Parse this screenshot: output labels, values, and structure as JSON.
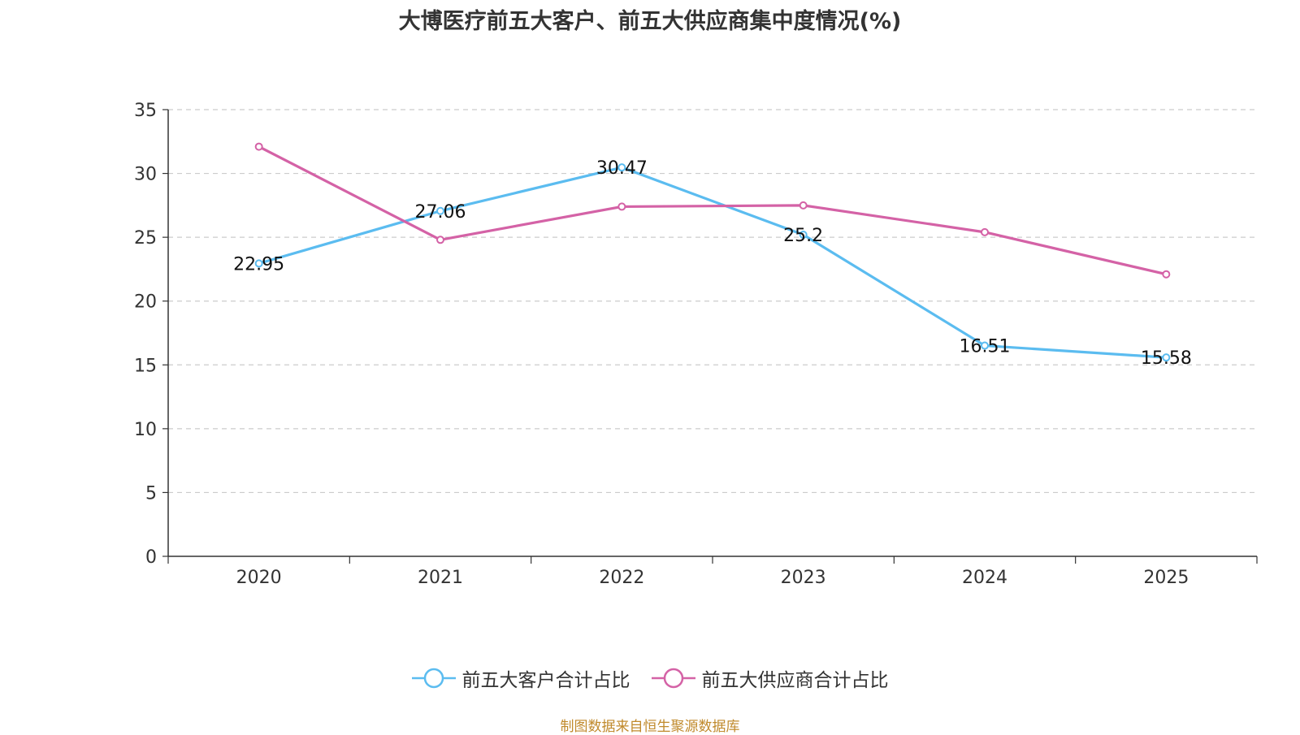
{
  "chart_data": {
    "type": "line",
    "title": "大博医疗前五大客户、前五大供应商集中度情况(%)",
    "xlabel": "",
    "ylabel": "",
    "categories": [
      "2020",
      "2021",
      "2022",
      "2023",
      "2024",
      "2025"
    ],
    "ylim": [
      0,
      35
    ],
    "yticks": [
      0,
      5,
      10,
      15,
      20,
      25,
      30,
      35
    ],
    "grid": true,
    "legend_position": "bottom-center",
    "series": [
      {
        "name": "前五大客户合计占比",
        "color": "#5bbcf0",
        "values": [
          22.95,
          27.06,
          30.47,
          25.2,
          16.51,
          15.58
        ],
        "labels": [
          "22.95",
          "27.06",
          "30.47",
          "25.2",
          "16.51",
          "15.58"
        ]
      },
      {
        "name": "前五大供应商合计占比",
        "color": "#d462a6",
        "values": [
          32.1,
          24.8,
          27.4,
          27.5,
          25.4,
          22.1
        ]
      }
    ]
  },
  "source": "制图数据来自恒生聚源数据库"
}
